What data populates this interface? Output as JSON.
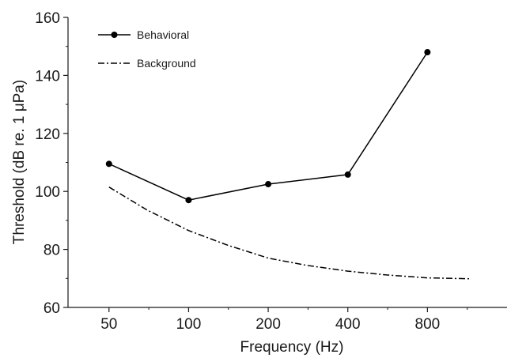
{
  "chart_data": {
    "type": "line",
    "xlabel": "Frequency (Hz)",
    "ylabel": "Threshold (dB re. 1 μPa)",
    "xscale": "log2",
    "ylim": [
      60,
      160
    ],
    "xlim": [
      35,
      1600
    ],
    "x_ticks": [
      50,
      100,
      200,
      400,
      800
    ],
    "y_ticks": [
      60,
      80,
      100,
      120,
      140,
      160
    ],
    "grid": false,
    "legend_position": "top-left",
    "series": [
      {
        "name": "Behavioral",
        "style": "solid-with-markers",
        "color": "#000000",
        "x": [
          50,
          100,
          200,
          400,
          800
        ],
        "y": [
          109.5,
          97,
          102.5,
          105.8,
          148
        ]
      },
      {
        "name": "Background",
        "style": "dash-dot",
        "color": "#000000",
        "x": [
          50,
          70,
          100,
          140,
          200,
          280,
          400,
          560,
          800,
          1150
        ],
        "y": [
          101.5,
          93.5,
          86.5,
          81.5,
          77,
          74.5,
          72.5,
          71.2,
          70.2,
          69.9
        ]
      }
    ]
  }
}
